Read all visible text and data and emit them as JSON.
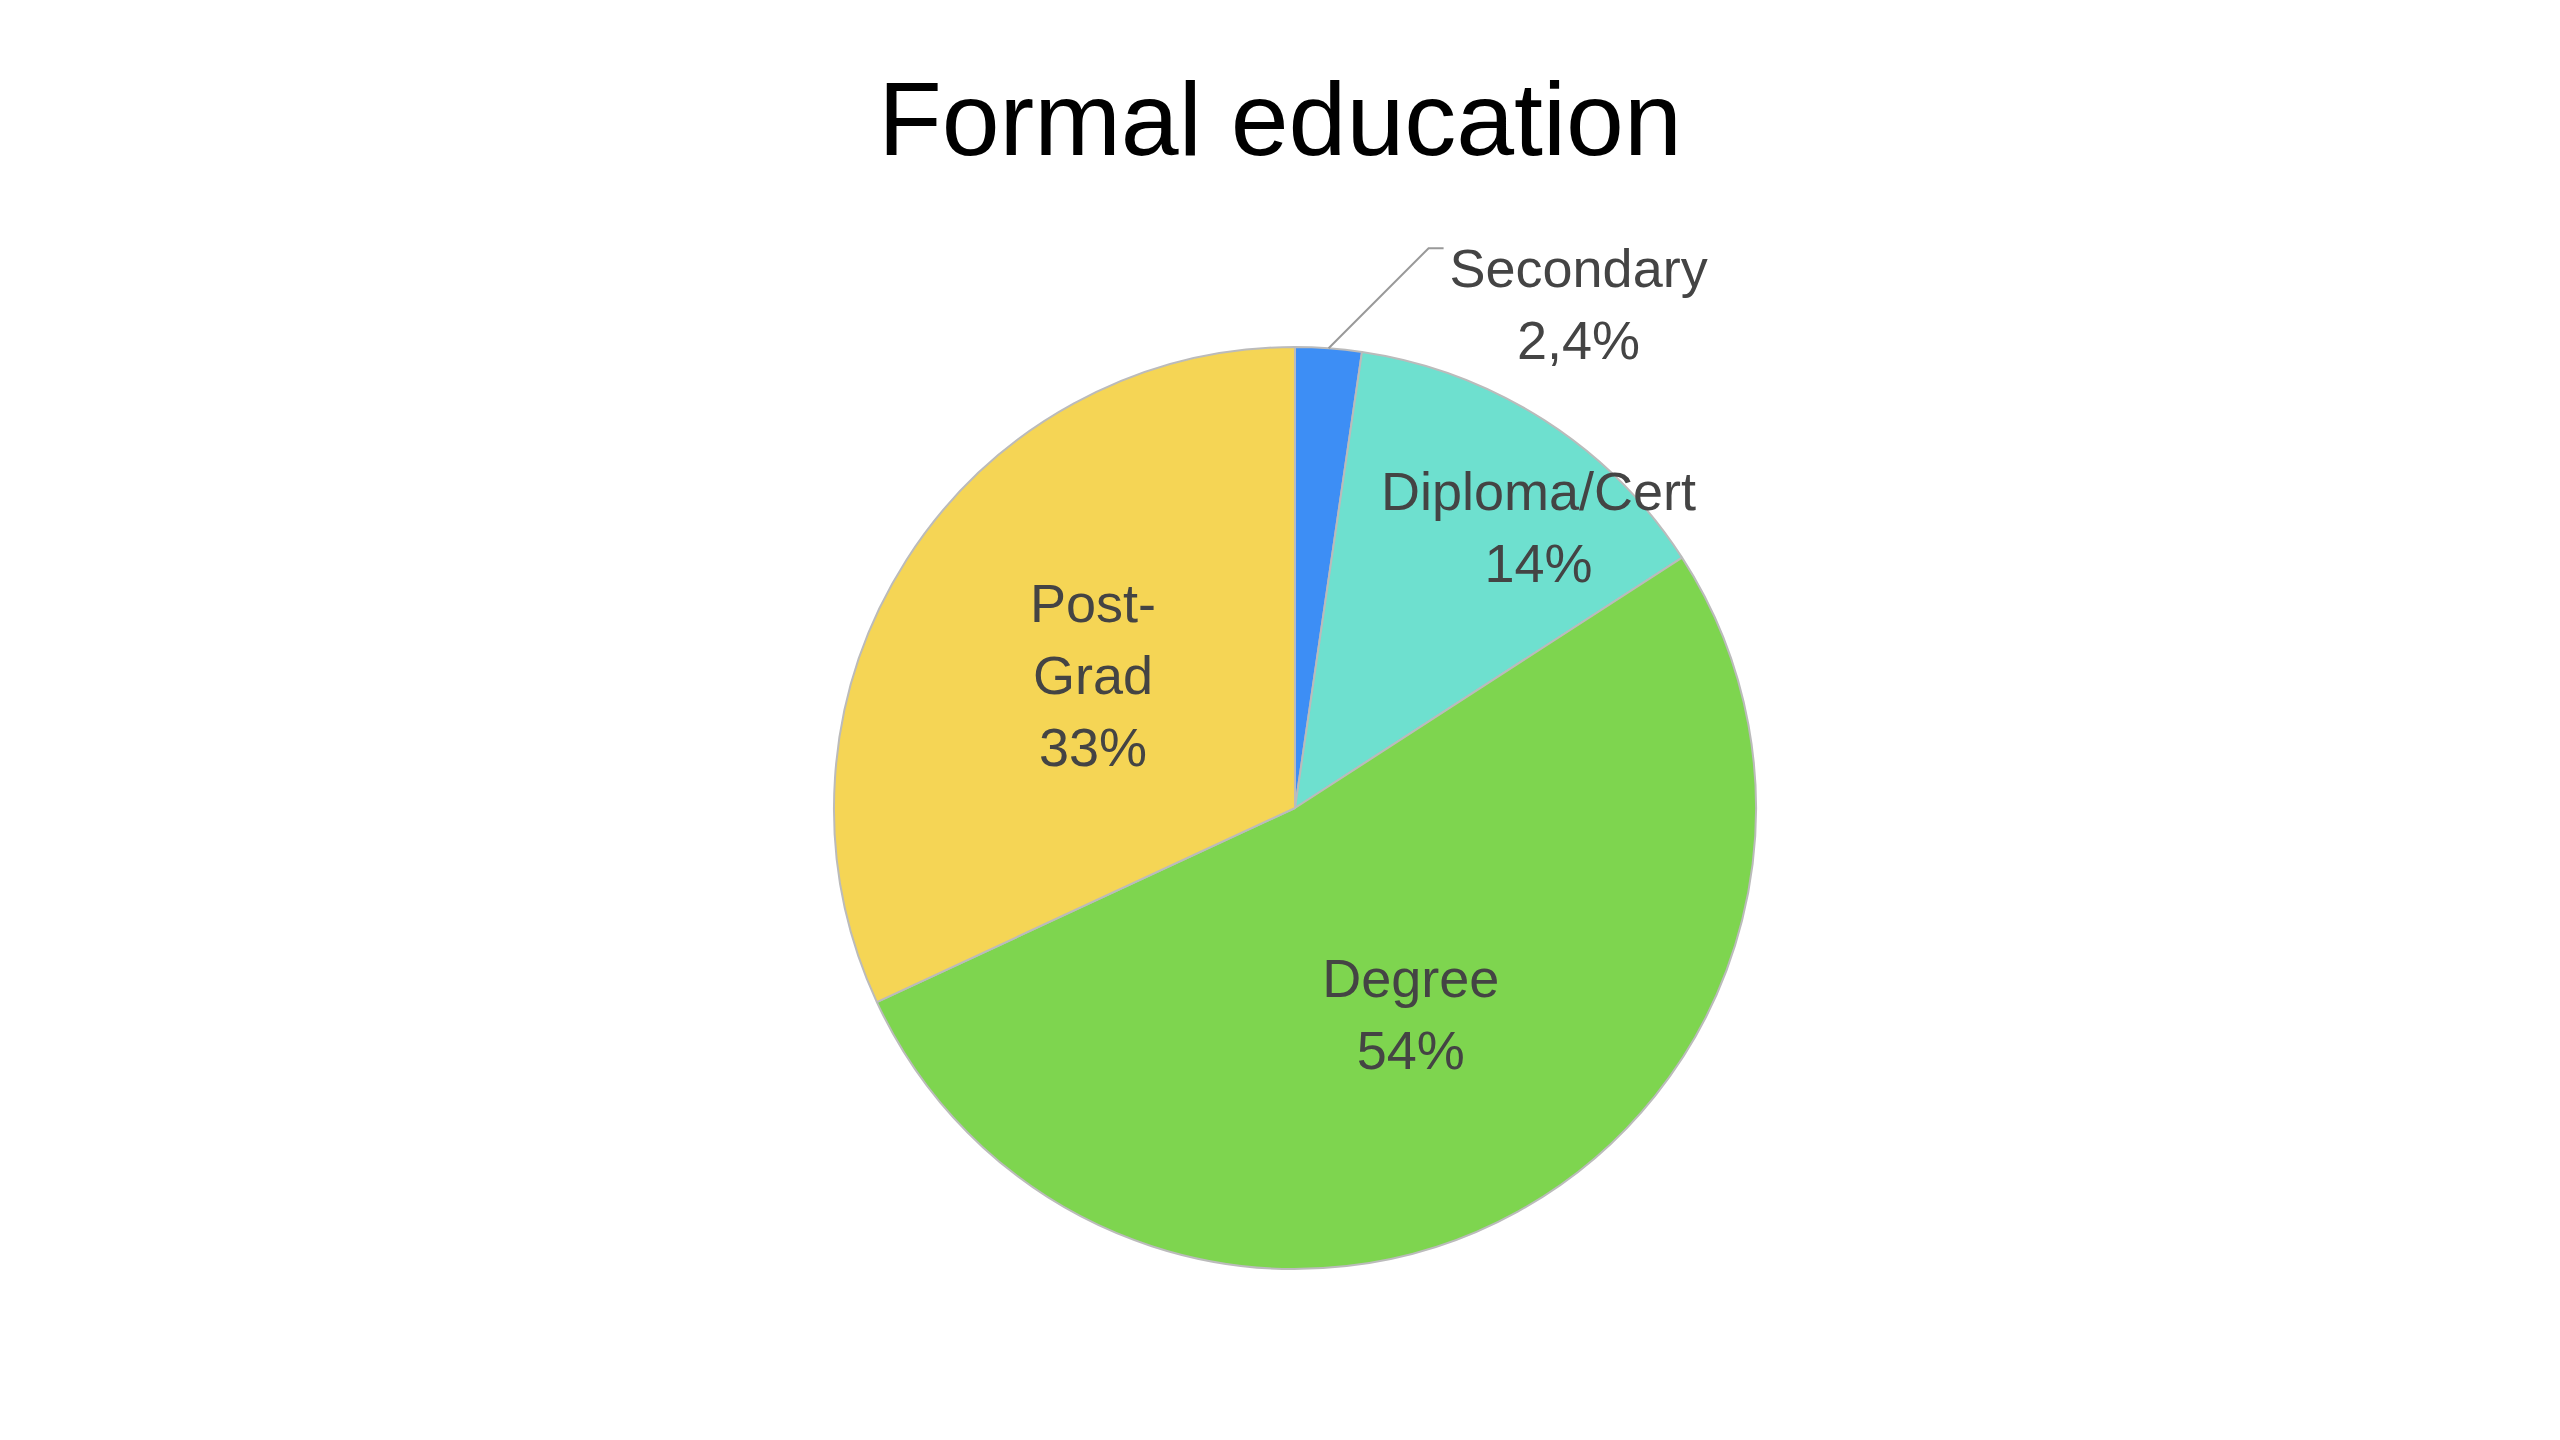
{
  "chart_data": {
    "type": "pie",
    "title": "Formal education",
    "categories": [
      "Secondary",
      "Diploma/Cert",
      "Degree",
      "Post-Grad"
    ],
    "values": [
      2.4,
      14,
      54,
      33
    ],
    "value_labels": [
      "2,4%",
      "14%",
      "54%",
      "33%"
    ],
    "colors": [
      "#3d8ef5",
      "#6ee0cf",
      "#7ed54f",
      "#f5d555"
    ],
    "legend": false
  }
}
